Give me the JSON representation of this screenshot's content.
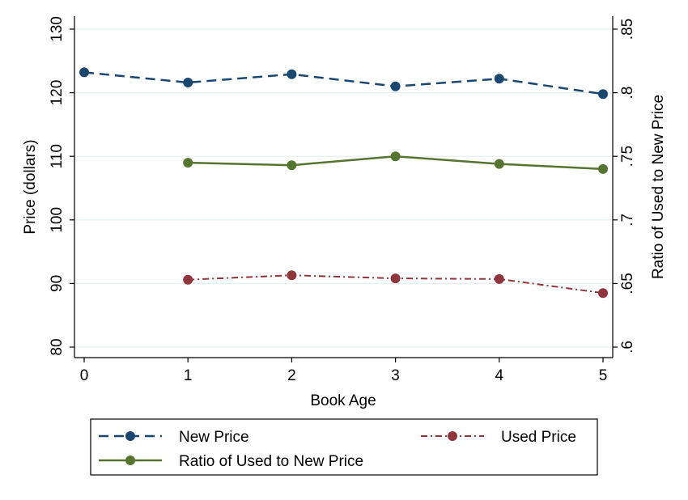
{
  "chart_data": {
    "type": "line",
    "xlabel": "Book Age",
    "ylabel_left": "Price (dollars)",
    "ylabel_right": "Ratio of Used to New Price",
    "x_ticks": [
      "0",
      "1",
      "2",
      "3",
      "4",
      "5"
    ],
    "y_left_ticks": [
      "80",
      "90",
      "100",
      "110",
      "120",
      "130"
    ],
    "y_right_ticks": [
      ".6",
      ".65",
      ".7",
      ".75",
      ".8",
      ".85"
    ],
    "xlim": [
      0,
      5
    ],
    "ylim_left": [
      80,
      130
    ],
    "ylim_right": [
      0.6,
      0.85
    ],
    "grid": "horizontal",
    "legend_position": "bottom",
    "series": [
      {
        "name": "New Price",
        "axis": "left",
        "style": "dashed",
        "color": "#1a476f",
        "x": [
          0,
          1,
          2,
          3,
          4,
          5
        ],
        "values": [
          123.2,
          121.6,
          122.9,
          121.0,
          122.2,
          119.8
        ]
      },
      {
        "name": "Used Price",
        "axis": "left",
        "style": "dashdot",
        "color": "#90353b",
        "x": [
          1,
          2,
          3,
          4,
          5
        ],
        "values": [
          90.6,
          91.3,
          90.8,
          90.7,
          88.5
        ]
      },
      {
        "name": "Ratio of Used to New Price",
        "axis": "right",
        "style": "solid",
        "color": "#55752f",
        "x": [
          1,
          2,
          3,
          4,
          5
        ],
        "values": [
          0.745,
          0.743,
          0.75,
          0.744,
          0.74
        ]
      }
    ]
  }
}
